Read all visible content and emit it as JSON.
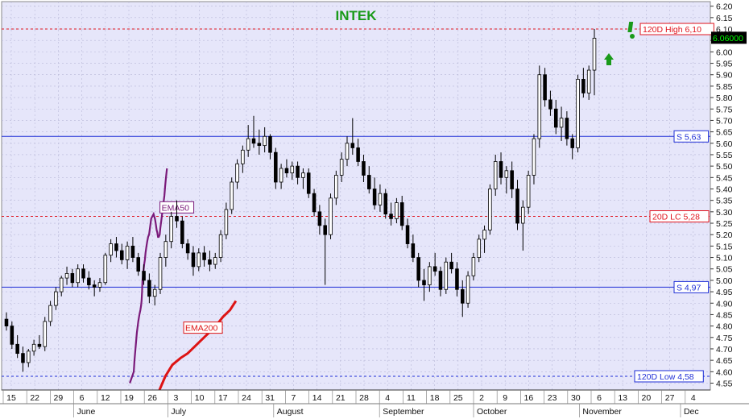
{
  "chart_data": {
    "type": "candlestick",
    "title": "INTEK",
    "colors": {
      "plot_bg": "#e6e6fa",
      "title": "#1a9a1a",
      "support": "#1f2fd6",
      "high": "#e0141e",
      "ema50": "#7a1a7a",
      "ema200": "#dd1414",
      "last_price_bg": "#000000",
      "last_price_fg": "#00ff00"
    },
    "ylim": [
      4.52,
      6.22
    ],
    "y_ticks": [
      "6.20",
      "6.15",
      "6.10",
      "6.05",
      "6.00",
      "5.95",
      "5.90",
      "5.85",
      "5.80",
      "5.75",
      "5.70",
      "5.65",
      "5.60",
      "5.55",
      "5.50",
      "5.45",
      "5.40",
      "5.35",
      "5.30",
      "5.25",
      "5.20",
      "5.15",
      "5.10",
      "5.05",
      "5.00",
      "4.95",
      "4.90",
      "4.85",
      "4.80",
      "4.75",
      "4.70",
      "4.65",
      "4.60",
      "4.55"
    ],
    "x_ticks": [
      "15",
      "22",
      "29",
      "6",
      "12",
      "19",
      "26",
      "3",
      "10",
      "17",
      "24",
      "31",
      "7",
      "14",
      "21",
      "28",
      "4",
      "11",
      "18",
      "25",
      "2",
      "9",
      "16",
      "23",
      "30",
      "6",
      "13",
      "20",
      "27",
      "4"
    ],
    "months": [
      "June",
      "July",
      "August",
      "September",
      "October",
      "November",
      "Dec"
    ],
    "grid": true,
    "horizontal_levels": [
      {
        "name": "120D High 6,10",
        "value": 6.1
      },
      {
        "name": "S 5,63",
        "value": 5.63
      },
      {
        "name": "20D LC 5,28",
        "value": 5.28
      },
      {
        "name": "S 4,97",
        "value": 4.97
      },
      {
        "name": "120D Low 4,58",
        "value": 4.58
      }
    ],
    "last_price": "6.06000",
    "series": [
      {
        "name": "EMA50"
      },
      {
        "name": "EMA200"
      }
    ],
    "ema50": [
      [
        5.04,
        4.55
      ],
      [
        5.21,
        4.6
      ],
      [
        5.24,
        4.65
      ],
      [
        5.28,
        4.7
      ],
      [
        5.34,
        4.77
      ],
      [
        5.4,
        4.82
      ],
      [
        5.45,
        4.85
      ],
      [
        5.49,
        4.87
      ],
      [
        5.52,
        4.89
      ],
      [
        5.54,
        4.91
      ],
      [
        5.56,
        4.95
      ],
      [
        5.58,
        5.0
      ],
      [
        5.62,
        5.04
      ],
      [
        5.65,
        5.07
      ],
      [
        5.68,
        5.09
      ],
      [
        5.71,
        5.12
      ],
      [
        5.75,
        5.15
      ],
      [
        5.78,
        5.17
      ],
      [
        5.82,
        5.19
      ],
      [
        5.86,
        5.2
      ],
      [
        5.91,
        5.24
      ],
      [
        5.95,
        5.27
      ],
      [
        6.0,
        5.28
      ],
      [
        6.05,
        5.29
      ],
      [
        6.08,
        5.28
      ],
      [
        6.11,
        5.27
      ],
      [
        6.14,
        5.25
      ],
      [
        6.18,
        5.22
      ],
      [
        6.21,
        5.21
      ],
      [
        6.24,
        5.19
      ],
      [
        6.27,
        5.19
      ],
      [
        6.31,
        5.2
      ],
      [
        6.34,
        5.23
      ],
      [
        6.39,
        5.27
      ],
      [
        6.45,
        5.32
      ],
      [
        6.51,
        5.37
      ],
      [
        6.54,
        5.41
      ],
      [
        6.57,
        5.44
      ],
      [
        6.6,
        5.47
      ],
      [
        6.62,
        5.49
      ]
    ],
    "ema200": [
      [
        6.3,
        4.52
      ],
      [
        6.55,
        4.58
      ],
      [
        6.85,
        4.63
      ],
      [
        7.2,
        4.66
      ],
      [
        7.5,
        4.68
      ],
      [
        7.8,
        4.71
      ],
      [
        8.1,
        4.74
      ],
      [
        8.4,
        4.77
      ],
      [
        8.7,
        4.8
      ],
      [
        9.0,
        4.84
      ],
      [
        9.3,
        4.87
      ],
      [
        9.55,
        4.91
      ]
    ],
    "candles": [
      [
        4.83,
        4.86,
        4.78,
        4.8
      ],
      [
        4.8,
        4.82,
        4.7,
        4.72
      ],
      [
        4.72,
        4.76,
        4.66,
        4.68
      ],
      [
        4.68,
        4.71,
        4.6,
        4.64
      ],
      [
        4.64,
        4.7,
        4.62,
        4.69
      ],
      [
        4.69,
        4.74,
        4.67,
        4.72
      ],
      [
        4.72,
        4.76,
        4.7,
        4.71
      ],
      [
        4.71,
        4.84,
        4.69,
        4.82
      ],
      [
        4.82,
        4.91,
        4.8,
        4.89
      ],
      [
        4.89,
        4.97,
        4.87,
        4.95
      ],
      [
        4.95,
        5.02,
        4.93,
        5.01
      ],
      [
        5.01,
        5.06,
        4.98,
        5.03
      ],
      [
        5.03,
        5.05,
        4.97,
        4.99
      ],
      [
        4.99,
        5.07,
        4.97,
        5.05
      ],
      [
        5.05,
        5.07,
        4.99,
        5.01
      ],
      [
        5.01,
        5.04,
        4.96,
        4.98
      ],
      [
        4.98,
        5.0,
        4.93,
        4.97
      ],
      [
        4.97,
        5.01,
        4.95,
        4.99
      ],
      [
        4.99,
        5.12,
        4.98,
        5.11
      ],
      [
        5.11,
        5.18,
        5.08,
        5.16
      ],
      [
        5.16,
        5.19,
        5.1,
        5.13
      ],
      [
        5.13,
        5.16,
        5.07,
        5.09
      ],
      [
        5.09,
        5.17,
        5.05,
        5.15
      ],
      [
        5.15,
        5.19,
        5.08,
        5.1
      ],
      [
        5.1,
        5.12,
        5.02,
        5.04
      ],
      [
        5.04,
        5.07,
        4.98,
        5.0
      ],
      [
        5.0,
        5.03,
        4.9,
        4.93
      ],
      [
        4.93,
        4.98,
        4.89,
        4.96
      ],
      [
        4.96,
        5.12,
        4.94,
        5.1
      ],
      [
        5.1,
        5.2,
        5.06,
        5.17
      ],
      [
        5.17,
        5.3,
        5.14,
        5.28
      ],
      [
        5.28,
        5.35,
        5.23,
        5.26
      ],
      [
        5.26,
        5.28,
        5.14,
        5.16
      ],
      [
        5.16,
        5.18,
        5.09,
        5.12
      ],
      [
        5.12,
        5.15,
        5.02,
        5.06
      ],
      [
        5.06,
        5.14,
        5.04,
        5.12
      ],
      [
        5.12,
        5.15,
        5.06,
        5.09
      ],
      [
        5.09,
        5.13,
        5.04,
        5.07
      ],
      [
        5.07,
        5.12,
        5.05,
        5.1
      ],
      [
        5.1,
        5.22,
        5.08,
        5.2
      ],
      [
        5.2,
        5.34,
        5.18,
        5.31
      ],
      [
        5.31,
        5.45,
        5.29,
        5.43
      ],
      [
        5.43,
        5.53,
        5.4,
        5.51
      ],
      [
        5.51,
        5.59,
        5.47,
        5.57
      ],
      [
        5.57,
        5.68,
        5.54,
        5.62
      ],
      [
        5.62,
        5.72,
        5.58,
        5.6
      ],
      [
        5.6,
        5.66,
        5.55,
        5.59
      ],
      [
        5.59,
        5.67,
        5.56,
        5.63
      ],
      [
        5.63,
        5.64,
        5.53,
        5.56
      ],
      [
        5.56,
        5.58,
        5.4,
        5.43
      ],
      [
        5.43,
        5.51,
        5.4,
        5.49
      ],
      [
        5.49,
        5.53,
        5.45,
        5.47
      ],
      [
        5.47,
        5.52,
        5.44,
        5.5
      ],
      [
        5.5,
        5.52,
        5.42,
        5.45
      ],
      [
        5.45,
        5.49,
        5.4,
        5.47
      ],
      [
        5.47,
        5.49,
        5.36,
        5.38
      ],
      [
        5.38,
        5.4,
        5.28,
        5.3
      ],
      [
        5.3,
        5.33,
        5.2,
        5.24
      ],
      [
        5.24,
        5.27,
        4.98,
        5.2
      ],
      [
        5.2,
        5.38,
        5.18,
        5.36
      ],
      [
        5.36,
        5.48,
        5.33,
        5.46
      ],
      [
        5.46,
        5.56,
        5.43,
        5.53
      ],
      [
        5.53,
        5.63,
        5.5,
        5.6
      ],
      [
        5.6,
        5.71,
        5.55,
        5.58
      ],
      [
        5.58,
        5.62,
        5.5,
        5.52
      ],
      [
        5.52,
        5.55,
        5.43,
        5.46
      ],
      [
        5.46,
        5.5,
        5.38,
        5.4
      ],
      [
        5.4,
        5.45,
        5.31,
        5.33
      ],
      [
        5.33,
        5.42,
        5.3,
        5.38
      ],
      [
        5.38,
        5.4,
        5.27,
        5.29
      ],
      [
        5.29,
        5.34,
        5.24,
        5.27
      ],
      [
        5.27,
        5.36,
        5.25,
        5.34
      ],
      [
        5.34,
        5.37,
        5.22,
        5.24
      ],
      [
        5.24,
        5.27,
        5.14,
        5.16
      ],
      [
        5.16,
        5.2,
        5.08,
        5.1
      ],
      [
        5.1,
        5.12,
        4.97,
        5.0
      ],
      [
        5.0,
        5.05,
        4.91,
        4.98
      ],
      [
        4.98,
        5.08,
        4.95,
        5.06
      ],
      [
        5.06,
        5.12,
        5.02,
        5.04
      ],
      [
        5.04,
        5.06,
        4.93,
        4.96
      ],
      [
        4.96,
        5.1,
        4.94,
        5.08
      ],
      [
        5.08,
        5.12,
        5.03,
        5.05
      ],
      [
        5.05,
        5.08,
        4.93,
        4.96
      ],
      [
        4.96,
        5.0,
        4.84,
        4.9
      ],
      [
        4.9,
        5.04,
        4.88,
        5.02
      ],
      [
        5.02,
        5.12,
        5.0,
        5.1
      ],
      [
        5.1,
        5.2,
        5.08,
        5.18
      ],
      [
        5.18,
        5.24,
        5.12,
        5.22
      ],
      [
        5.22,
        5.42,
        5.2,
        5.4
      ],
      [
        5.4,
        5.55,
        5.37,
        5.52
      ],
      [
        5.52,
        5.56,
        5.42,
        5.45
      ],
      [
        5.45,
        5.5,
        5.38,
        5.48
      ],
      [
        5.48,
        5.52,
        5.36,
        5.4
      ],
      [
        5.4,
        5.44,
        5.22,
        5.25
      ],
      [
        5.25,
        5.35,
        5.13,
        5.32
      ],
      [
        5.32,
        5.48,
        5.29,
        5.46
      ],
      [
        5.46,
        5.64,
        5.42,
        5.62
      ],
      [
        5.62,
        5.94,
        5.58,
        5.9
      ],
      [
        5.9,
        5.93,
        5.76,
        5.79
      ],
      [
        5.79,
        5.83,
        5.72,
        5.75
      ],
      [
        5.75,
        5.79,
        5.64,
        5.67
      ],
      [
        5.67,
        5.76,
        5.61,
        5.71
      ],
      [
        5.71,
        5.74,
        5.59,
        5.62
      ],
      [
        5.62,
        5.64,
        5.53,
        5.58
      ],
      [
        5.58,
        5.9,
        5.56,
        5.88
      ],
      [
        5.88,
        5.93,
        5.8,
        5.82
      ],
      [
        5.82,
        5.94,
        5.79,
        5.92
      ],
      [
        5.92,
        6.1,
        5.81,
        6.06
      ]
    ]
  }
}
